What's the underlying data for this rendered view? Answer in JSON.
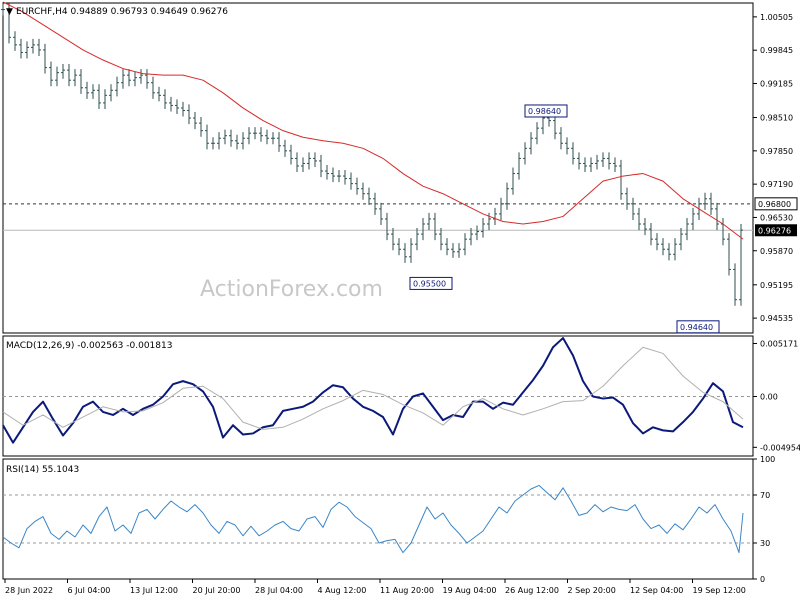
{
  "colors": {
    "price": "#2f4f4f",
    "sma": "#d62a2a",
    "macd": "#0b1a7a",
    "macd_signal": "#b0b0b0",
    "rsi": "#3a86c8",
    "box_border": "#0b1a7a",
    "frame": "#000000",
    "guide_dash": "#333333",
    "current_line": "#b9b9b9",
    "watermark": "#c8c8c8"
  },
  "watermark": "ActionForex.com",
  "chart_data": [
    {
      "type": "line",
      "panel": "price",
      "title": "EURCHF,H4  0.94889 0.96793 0.94649 0.96276",
      "header_arrow": "▼",
      "xlabel": "",
      "ylabel": "",
      "ylim": [
        0.9424,
        1.0078
      ],
      "ticks": [
        "1.00505",
        "0.99845",
        "0.99185",
        "0.98510",
        "0.97850",
        "0.97190",
        "0.96530",
        "0.95870",
        "0.95195",
        "0.94535"
      ],
      "tick_values": [
        1.00505,
        0.99845,
        0.99185,
        0.9851,
        0.9785,
        0.9719,
        0.9653,
        0.9587,
        0.95195,
        0.94535
      ],
      "x_categories": [
        "28 Jun 2022",
        "6 Jul 04:00",
        "13 Jul 12:00",
        "20 Jul 20:00",
        "28 Jul 04:00",
        "4 Aug 12:00",
        "11 Aug 20:00",
        "19 Aug 04:00",
        "26 Aug 12:00",
        "2 Sep 20:00",
        "12 Sep 04:00",
        "19 Sep 12:00"
      ],
      "series": [
        {
          "kind": "close",
          "x": [
            0,
            6,
            12,
            18,
            24,
            30,
            36,
            42,
            48,
            54,
            60,
            66,
            72,
            78,
            84,
            90,
            96,
            102,
            108,
            114,
            120,
            126,
            132,
            138,
            144,
            150,
            156,
            162,
            168,
            174,
            180,
            186,
            192,
            198,
            204,
            210,
            216,
            222,
            228,
            234,
            240,
            246,
            252,
            258,
            264,
            270,
            276,
            282,
            288,
            294,
            300,
            306,
            312,
            318,
            324,
            330,
            336,
            342,
            348,
            354,
            360,
            366,
            372,
            378,
            384,
            390,
            396,
            402,
            408,
            414,
            420,
            426,
            432,
            438,
            444,
            450,
            456,
            462,
            468,
            474,
            480,
            486,
            492,
            498,
            504,
            510,
            516,
            522,
            528,
            534,
            540,
            546,
            552,
            558,
            564,
            570,
            576,
            582,
            588,
            594,
            600,
            606,
            612,
            618,
            624,
            630,
            636,
            642,
            648,
            654,
            660,
            666,
            672,
            678,
            684,
            690,
            696,
            702,
            708,
            714,
            720,
            726,
            732,
            738
          ],
          "values": [
            1.0065,
            1.001,
            0.9995,
            0.998,
            0.999,
            0.9995,
            0.9985,
            0.995,
            0.9925,
            0.994,
            0.9945,
            0.9925,
            0.9935,
            0.991,
            0.99,
            0.9905,
            0.988,
            0.9895,
            0.9905,
            0.992,
            0.9935,
            0.9925,
            0.993,
            0.9935,
            0.992,
            0.99,
            0.9895,
            0.988,
            0.9875,
            0.987,
            0.9865,
            0.985,
            0.984,
            0.9825,
            0.98,
            0.98,
            0.981,
            0.9815,
            0.9805,
            0.98,
            0.981,
            0.982,
            0.982,
            0.9815,
            0.981,
            0.981,
            0.9795,
            0.9785,
            0.977,
            0.9755,
            0.976,
            0.977,
            0.9765,
            0.9745,
            0.974,
            0.9735,
            0.9735,
            0.973,
            0.972,
            0.971,
            0.97,
            0.969,
            0.967,
            0.965,
            0.962,
            0.96,
            0.959,
            0.9575,
            0.96,
            0.962,
            0.964,
            0.965,
            0.962,
            0.96,
            0.959,
            0.9585,
            0.959,
            0.961,
            0.962,
            0.9625,
            0.964,
            0.965,
            0.966,
            0.968,
            0.971,
            0.974,
            0.977,
            0.979,
            0.981,
            0.983,
            0.985,
            0.9845,
            0.982,
            0.98,
            0.979,
            0.977,
            0.976,
            0.9755,
            0.976,
            0.9765,
            0.977,
            0.976,
            0.9755,
            0.97,
            0.968,
            0.966,
            0.964,
            0.963,
            0.961,
            0.96,
            0.959,
            0.958,
            0.96,
            0.962,
            0.964,
            0.966,
            0.968,
            0.969,
            0.967,
            0.964,
            0.961,
            0.955,
            0.949,
            0.9628
          ]
        },
        {
          "kind": "sma",
          "x": [
            0,
            20,
            40,
            60,
            80,
            100,
            120,
            140,
            160,
            180,
            200,
            220,
            240,
            260,
            280,
            300,
            320,
            340,
            360,
            380,
            400,
            420,
            440,
            460,
            480,
            500,
            520,
            540,
            560,
            580,
            600,
            620,
            640,
            660,
            680,
            700,
            720,
            740
          ],
          "values": [
            1.008,
            1.006,
            1.0035,
            1.001,
            0.9985,
            0.9965,
            0.9948,
            0.9938,
            0.9935,
            0.9935,
            0.9925,
            0.99,
            0.987,
            0.9845,
            0.9825,
            0.9812,
            0.9805,
            0.98,
            0.979,
            0.977,
            0.974,
            0.9715,
            0.97,
            0.968,
            0.966,
            0.9645,
            0.964,
            0.9645,
            0.9655,
            0.969,
            0.9725,
            0.9735,
            0.974,
            0.9725,
            0.969,
            0.9665,
            0.964,
            0.961
          ]
        }
      ],
      "annotations": [
        {
          "label": "0.98640",
          "x": 560,
          "y": 0.9864
        },
        {
          "label": "0.95500",
          "x": 445,
          "y": 0.955
        },
        {
          "label": "0.94640",
          "x": 712,
          "y": 0.9464
        }
      ],
      "levels": [
        {
          "label": "0.96800",
          "value": 0.968,
          "style": "dashed"
        },
        {
          "label": "0.96276",
          "value": 0.96276,
          "style": "current"
        }
      ]
    },
    {
      "type": "line",
      "panel": "macd",
      "title": "MACD(12,26,9) -0.002563 -0.001813",
      "xlabel": "",
      "ylabel": "",
      "ylim": [
        -0.0058,
        0.0059
      ],
      "ticks": [
        "0.005171",
        "0.00",
        "-0.004954"
      ],
      "tick_values": [
        0.005171,
        0.0,
        -0.004954
      ],
      "series": [
        {
          "kind": "macd",
          "x": [
            0,
            10,
            20,
            30,
            40,
            50,
            60,
            70,
            80,
            90,
            100,
            110,
            120,
            130,
            140,
            150,
            160,
            170,
            180,
            190,
            200,
            210,
            220,
            230,
            240,
            250,
            260,
            270,
            280,
            290,
            300,
            310,
            320,
            330,
            340,
            350,
            360,
            370,
            380,
            390,
            400,
            410,
            420,
            430,
            440,
            450,
            460,
            470,
            480,
            490,
            500,
            510,
            520,
            530,
            540,
            550,
            560,
            570,
            580,
            590,
            600,
            610,
            620,
            630,
            640,
            650,
            660,
            670,
            680,
            690,
            700,
            710,
            720,
            730,
            740
          ],
          "values": [
            -0.0028,
            -0.0045,
            -0.003,
            -0.0015,
            -0.0005,
            -0.0022,
            -0.0038,
            -0.0026,
            -0.001,
            -0.0005,
            -0.0015,
            -0.0018,
            -0.0012,
            -0.0018,
            -0.0012,
            -0.0008,
            0.0,
            0.0012,
            0.0015,
            0.0012,
            0.0005,
            -0.001,
            -0.004,
            -0.0028,
            -0.0037,
            -0.0036,
            -0.003,
            -0.0028,
            -0.0014,
            -0.0012,
            -0.001,
            -0.0005,
            0.0004,
            0.0011,
            0.0009,
            -0.0002,
            -0.001,
            -0.0014,
            -0.002,
            -0.0037,
            -0.0012,
            0.0,
            0.0003,
            -0.001,
            -0.0023,
            -0.0018,
            -0.002,
            -0.0005,
            -0.0005,
            -0.0012,
            -0.0006,
            -0.0008,
            0.0004,
            0.0016,
            0.003,
            0.0048,
            0.0057,
            0.004,
            0.0015,
            0.0,
            -0.0002,
            -0.0001,
            -0.0008,
            -0.0026,
            -0.0036,
            -0.003,
            -0.0033,
            -0.0034,
            -0.0025,
            -0.0015,
            -0.0002,
            0.0013,
            0.0005,
            -0.0025,
            -0.003
          ]
        },
        {
          "kind": "signal",
          "x": [
            0,
            20,
            40,
            60,
            80,
            100,
            120,
            140,
            160,
            180,
            200,
            220,
            240,
            260,
            280,
            300,
            320,
            340,
            360,
            380,
            400,
            420,
            440,
            460,
            480,
            500,
            520,
            540,
            560,
            580,
            600,
            620,
            640,
            660,
            680,
            700,
            720,
            740
          ],
          "values": [
            -0.0015,
            -0.0028,
            -0.0018,
            -0.003,
            -0.002,
            -0.001,
            -0.0015,
            -0.0014,
            -0.0006,
            0.0008,
            0.001,
            -0.0002,
            -0.0025,
            -0.0032,
            -0.003,
            -0.0022,
            -0.0012,
            -0.0004,
            0.0006,
            0.0002,
            -0.0008,
            -0.0016,
            -0.0028,
            -0.001,
            -0.0002,
            -0.0012,
            -0.0018,
            -0.0012,
            -0.0005,
            -0.0004,
            0.001,
            0.003,
            0.0048,
            0.0042,
            0.002,
            0.0004,
            -0.0005,
            -0.0022
          ]
        }
      ]
    },
    {
      "type": "line",
      "panel": "rsi",
      "title": "RSI(14) 55.1043",
      "xlabel": "",
      "ylabel": "",
      "ylim": [
        0,
        100
      ],
      "ticks": [
        "100",
        "70",
        "30",
        "0"
      ],
      "tick_values": [
        100,
        70,
        30,
        0
      ],
      "levels": [
        70,
        30
      ],
      "series": [
        {
          "kind": "rsi",
          "x": [
            0,
            8,
            16,
            24,
            32,
            40,
            48,
            56,
            64,
            72,
            80,
            88,
            96,
            104,
            112,
            120,
            128,
            136,
            144,
            152,
            160,
            168,
            176,
            184,
            192,
            200,
            208,
            216,
            224,
            232,
            240,
            248,
            256,
            264,
            272,
            280,
            288,
            296,
            304,
            312,
            320,
            328,
            336,
            344,
            352,
            360,
            368,
            376,
            384,
            392,
            400,
            408,
            416,
            424,
            432,
            440,
            448,
            456,
            464,
            472,
            480,
            488,
            496,
            504,
            512,
            520,
            528,
            536,
            544,
            552,
            560,
            568,
            576,
            584,
            592,
            600,
            608,
            616,
            624,
            632,
            640,
            648,
            656,
            664,
            672,
            680,
            688,
            696,
            704,
            712,
            720,
            728,
            736,
            740
          ],
          "values": [
            35,
            30,
            26,
            42,
            48,
            52,
            38,
            33,
            40,
            35,
            45,
            38,
            52,
            60,
            40,
            45,
            38,
            55,
            58,
            50,
            58,
            65,
            60,
            56,
            62,
            55,
            45,
            38,
            48,
            45,
            36,
            44,
            36,
            40,
            45,
            48,
            42,
            40,
            50,
            52,
            43,
            58,
            64,
            60,
            52,
            47,
            42,
            30,
            32,
            33,
            22,
            30,
            45,
            60,
            50,
            55,
            45,
            38,
            30,
            35,
            40,
            50,
            60,
            55,
            65,
            70,
            75,
            78,
            72,
            66,
            76,
            65,
            53,
            55,
            62,
            56,
            60,
            58,
            57,
            62,
            50,
            42,
            45,
            38,
            46,
            41,
            50,
            60,
            55,
            62,
            50,
            40,
            22,
            55
          ]
        }
      ]
    }
  ]
}
